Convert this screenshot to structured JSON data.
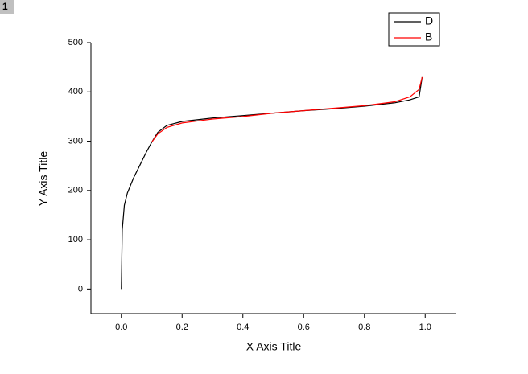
{
  "chart_data": {
    "type": "line",
    "panel_label": "1",
    "x_label": "X Axis Title",
    "y_label": "Y Axis Title",
    "xlim": [
      -0.1,
      1.1
    ],
    "ylim": [
      -50,
      500
    ],
    "xticks": [
      {
        "value": 0,
        "label": "0.0"
      },
      0.2,
      0.4,
      0.6,
      0.8,
      {
        "value": 1,
        "label": "1.0"
      }
    ],
    "yticks": [
      0,
      100,
      200,
      300,
      400,
      500
    ],
    "legend": "upper-right",
    "series": [
      {
        "name": "D",
        "color": "#000000",
        "x": [
          0,
          0.003,
          0.01,
          0.02,
          0.04,
          0.06,
          0.08,
          0.1,
          0.12,
          0.15,
          0.2,
          0.3,
          0.4,
          0.5,
          0.6,
          0.7,
          0.8,
          0.9,
          0.95,
          0.98,
          0.99
        ],
        "values": [
          0,
          120,
          170,
          195,
          225,
          250,
          275,
          298,
          318,
          332,
          340,
          347,
          352,
          357,
          362,
          366,
          371,
          378,
          384,
          390,
          430
        ]
      },
      {
        "name": "B",
        "color": "#ff0000",
        "x": [
          0.1,
          0.12,
          0.15,
          0.2,
          0.3,
          0.4,
          0.5,
          0.6,
          0.7,
          0.8,
          0.9,
          0.95,
          0.98,
          0.99
        ],
        "values": [
          298,
          315,
          328,
          337,
          345,
          350,
          357,
          362,
          367,
          372,
          380,
          390,
          405,
          430
        ]
      }
    ]
  }
}
